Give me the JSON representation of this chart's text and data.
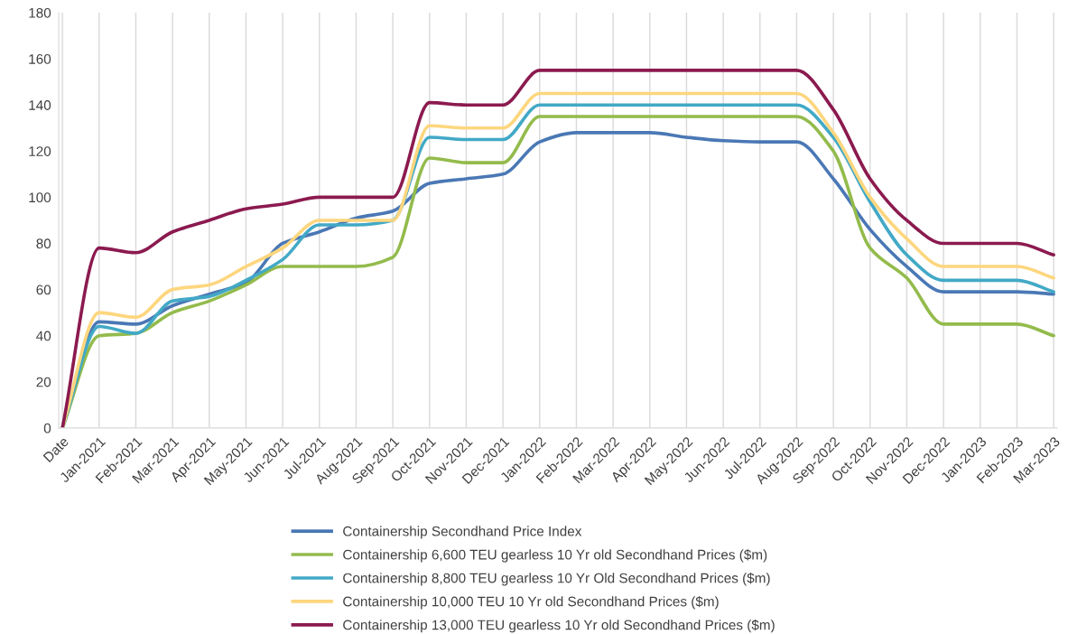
{
  "chart_data": {
    "type": "line",
    "categories": [
      "Date",
      "Jan-2021",
      "Feb-2021",
      "Mar-2021",
      "Apr-2021",
      "May-2021",
      "Jun-2021",
      "Jul-2021",
      "Aug-2021",
      "Sep-2021",
      "Oct-2021",
      "Nov-2021",
      "Dec-2021",
      "Jan-2022",
      "Feb-2022",
      "Mar-2022",
      "Apr-2022",
      "May-2022",
      "Jun-2022",
      "Jul-2022",
      "Aug-2022",
      "Sep-2022",
      "Oct-2022",
      "Nov-2022",
      "Dec-2022",
      "Jan-2023",
      "Feb-2023",
      "Mar-2023"
    ],
    "series": [
      {
        "name": "Containership Secondhand Price Index",
        "color": "#4a78b5",
        "values": [
          0,
          46,
          45,
          53,
          58,
          63,
          80,
          85,
          91,
          94,
          106,
          108,
          110,
          124,
          128,
          128,
          128,
          126,
          124.5,
          124,
          124,
          108,
          86,
          70,
          59,
          59,
          59,
          58
        ]
      },
      {
        "name": "Containership 6,600 TEU gearless 10 Yr old Secondhand Prices ($m)",
        "color": "#93bb4c",
        "values": [
          0,
          40,
          41,
          50,
          55,
          62,
          70,
          70,
          70,
          74,
          117,
          115,
          115,
          135,
          135,
          135,
          135,
          135,
          135,
          135,
          135,
          120,
          78,
          65,
          45,
          45,
          45,
          40
        ]
      },
      {
        "name": "Containership 8,800 TEU gearless 10 Yr Old Secondhand Prices ($m)",
        "color": "#42a9c6",
        "values": [
          0,
          44,
          41,
          55,
          57,
          64,
          73,
          88,
          88,
          90,
          126,
          125,
          125,
          140,
          140,
          140,
          140,
          140,
          140,
          140,
          140,
          126,
          98,
          75,
          64,
          64,
          64,
          59
        ]
      },
      {
        "name": "Containership 10,000 TEU 10 Yr old Secondhand Prices ($m)",
        "color": "#fdd67e",
        "values": [
          0,
          50,
          48,
          60,
          62,
          70,
          78,
          90,
          90,
          90,
          131,
          130,
          130,
          145,
          145,
          145,
          145,
          145,
          145,
          145,
          145,
          128,
          100,
          82,
          70,
          70,
          70,
          65
        ]
      },
      {
        "name": "Containership 13,000 TEU gearless 10 Yr old Secondhand Prices ($m)",
        "color": "#8b1a4f",
        "values": [
          0,
          78,
          76,
          85,
          90,
          95,
          97,
          100,
          100,
          100,
          141,
          140,
          140,
          155,
          155,
          155,
          155,
          155,
          155,
          155,
          155,
          138,
          108,
          90,
          80,
          80,
          80,
          75
        ]
      }
    ],
    "ylim": [
      0,
      180
    ],
    "yticks": [
      0,
      20,
      40,
      60,
      80,
      100,
      120,
      140,
      160,
      180
    ],
    "grid": "x",
    "legend": "bottom",
    "marker": "none",
    "line_style": "solid"
  }
}
